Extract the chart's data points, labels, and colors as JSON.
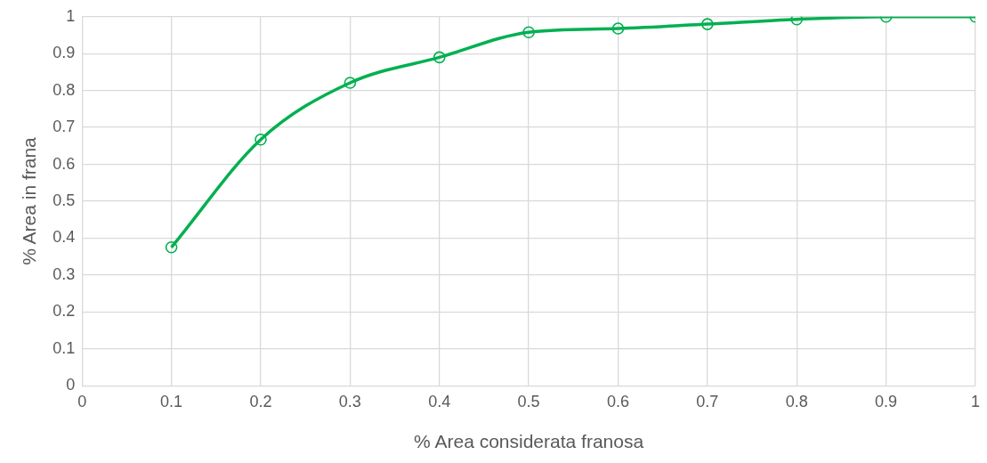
{
  "chart_data": {
    "type": "line",
    "xlabel": "% Area considerata franosa",
    "ylabel": "% Area in frana",
    "x": [
      0.1,
      0.2,
      0.3,
      0.4,
      0.5,
      0.6,
      0.7,
      0.8,
      0.9,
      1
    ],
    "series": [
      {
        "color": "#00b050",
        "values": [
          0.375,
          0.667,
          0.821,
          0.89,
          0.958,
          0.968,
          0.98,
          0.993,
          1,
          1
        ]
      }
    ],
    "xlim": [
      0,
      1
    ],
    "xticks": [
      0,
      0.1,
      0.2,
      0.3,
      0.4,
      0.5,
      0.6,
      0.7,
      0.8,
      0.9,
      1
    ],
    "ylim": [
      0,
      1
    ],
    "yticks": [
      0,
      0.1,
      0.2,
      0.3,
      0.4,
      0.5,
      0.6,
      0.7,
      0.8,
      0.9,
      1
    ],
    "grid": true,
    "marker": "circle",
    "line_style": "solid"
  }
}
